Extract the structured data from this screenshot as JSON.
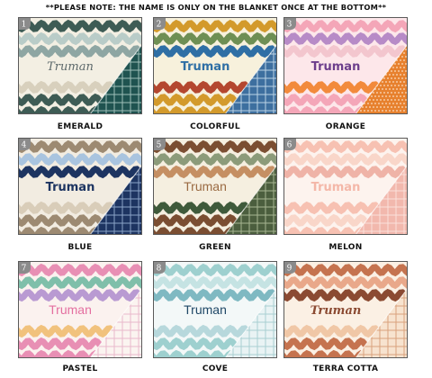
{
  "note": "**PLEASE NOTE: THE NAME IS ONLY ON THE BLANKET ONCE AT THE BOTTOM**",
  "blankets": [
    {
      "number": "1",
      "label": "EMERALD",
      "name": "Truman",
      "name_color": "#5e6a6c",
      "name_style": "script",
      "bg": "#f3efe3",
      "waves": [
        "#3e5c55",
        "#b9ccc8",
        "#8ea6a3",
        "#d8d0bd",
        "#3e5c55"
      ],
      "corner": "#1f5350",
      "corner_pattern": "plaid",
      "corner_line": "#9fbfb9"
    },
    {
      "number": "2",
      "label": "COLORFUL",
      "name": "Truman",
      "name_color": "#2f6fa5",
      "name_style": "bold",
      "bg": "#f7f1dc",
      "waves": [
        "#d39a2c",
        "#6e8f54",
        "#2f6fa5",
        "#b4472f",
        "#d39a2c"
      ],
      "corner": "#3d6f9f",
      "corner_pattern": "plaid",
      "corner_line": "#bcd3e6"
    },
    {
      "number": "3",
      "label": "ORANGE",
      "name": "Truman",
      "name_color": "#6d3e8c",
      "name_style": "bold",
      "bg": "#fde7ea",
      "waves": [
        "#f4a6b8",
        "#b78bc7",
        "#f3c6ce",
        "#f28a3c",
        "#f4a6b8"
      ],
      "corner": "#e7812e",
      "corner_pattern": "dots",
      "corner_line": "#fbe0c6"
    },
    {
      "number": "4",
      "label": "BLUE",
      "name": "Truman",
      "name_color": "#1d3461",
      "name_style": "bold",
      "bg": "#f2ece1",
      "waves": [
        "#9d8a72",
        "#a9c4df",
        "#1d3461",
        "#d9cdb9",
        "#9d8a72"
      ],
      "corner": "#1d3461",
      "corner_pattern": "plaid",
      "corner_line": "#8aa3c7"
    },
    {
      "number": "5",
      "label": "GREEN",
      "name": "Truman",
      "name_color": "#9a6a42",
      "name_style": "plain",
      "bg": "#f5efe0",
      "waves": [
        "#7b4e32",
        "#8c9b7a",
        "#c58f63",
        "#3f5a3b",
        "#7b4e32"
      ],
      "corner": "#4b5e3e",
      "corner_pattern": "plaid",
      "corner_line": "#a7b592"
    },
    {
      "number": "6",
      "label": "MELON",
      "name": "Truman",
      "name_color": "#f4b7a8",
      "name_style": "bold",
      "bg": "#fdf3ee",
      "waves": [
        "#f7c1b2",
        "#f9d6c9",
        "#efb3a7",
        "#f7c1b2",
        "#f9d6c9"
      ],
      "corner": "#f2b8ad",
      "corner_pattern": "plaid",
      "corner_line": "#fbe1da"
    },
    {
      "number": "7",
      "label": "PASTEL",
      "name": "Truman",
      "name_color": "#e46fa0",
      "name_style": "plain",
      "bg": "#fbf2ef",
      "waves": [
        "#e88fb4",
        "#7fbfaa",
        "#b99ad2",
        "#f1c27d",
        "#e88fb4"
      ],
      "corner": "#fbf4f0",
      "corner_pattern": "plaid",
      "corner_line": "#e8b9cb"
    },
    {
      "number": "8",
      "label": "COVE",
      "name": "Truman",
      "name_color": "#1f4766",
      "name_style": "plain",
      "bg": "#f3f8f8",
      "waves": [
        "#9ed0cf",
        "#c5e3e3",
        "#7fb9c2",
        "#b7d8dc",
        "#9ed0cf"
      ],
      "corner": "#e9f3f4",
      "corner_pattern": "plaid",
      "corner_line": "#a9cfd2"
    },
    {
      "number": "9",
      "label": "TERRA COTTA",
      "name": "Truman",
      "name_color": "#8b4a32",
      "name_style": "script",
      "bg": "#fbf0e4",
      "waves": [
        "#c5734f",
        "#e9a88a",
        "#8b4a32",
        "#f0c7a6",
        "#c5734f"
      ],
      "corner": "#f7e3cf",
      "corner_pattern": "plaid",
      "corner_line": "#d8a27c"
    }
  ]
}
